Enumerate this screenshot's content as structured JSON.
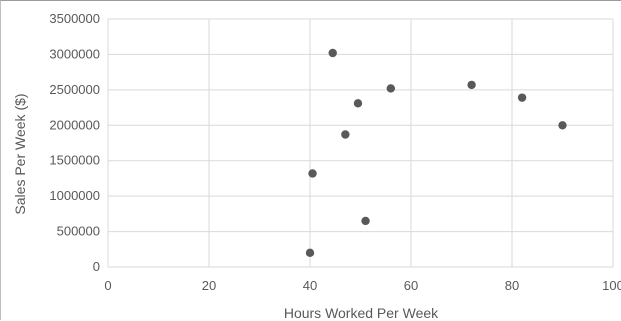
{
  "chart_data": {
    "type": "scatter",
    "title": "",
    "xlabel": "Hours Worked Per Week",
    "ylabel": "Sales Per Week ($)",
    "xlim": [
      0,
      100
    ],
    "ylim": [
      0,
      3500000
    ],
    "x_ticks": [
      0,
      20,
      40,
      60,
      80,
      100
    ],
    "y_ticks": [
      0,
      500000,
      1000000,
      1500000,
      2000000,
      2500000,
      3000000,
      3500000
    ],
    "grid": true,
    "legend": "none",
    "marker_color": "#595959",
    "grid_color": "#d9d9d9",
    "points": [
      {
        "x": 40,
        "y": 200000
      },
      {
        "x": 40.5,
        "y": 1320000
      },
      {
        "x": 44.5,
        "y": 3020000
      },
      {
        "x": 47,
        "y": 1870000
      },
      {
        "x": 49.5,
        "y": 2310000
      },
      {
        "x": 51,
        "y": 650000
      },
      {
        "x": 56,
        "y": 2520000
      },
      {
        "x": 72,
        "y": 2570000
      },
      {
        "x": 82,
        "y": 2390000
      },
      {
        "x": 90,
        "y": 2000000
      }
    ]
  }
}
